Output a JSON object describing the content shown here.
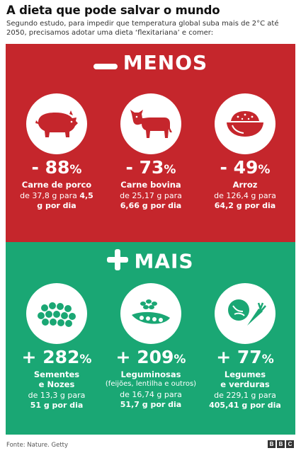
{
  "title": "A dieta que pode salvar o mundo",
  "subtitle": "Segundo estudo, para impedir que temperatura global suba mais de 2°C até 2050, precisamos adotar uma dieta ‘flexitariana’ e comer:",
  "menos": {
    "heading": "MENOS",
    "color": "#c5262c",
    "items": [
      {
        "icon": "pig-icon",
        "pct": "- 88",
        "name": "Carne de porco",
        "desc_pre": "de 37,8 g para ",
        "desc_bold": "4,5",
        "desc_line2": "g por dia"
      },
      {
        "icon": "cow-icon",
        "pct": "- 73",
        "name": "Carne bovina",
        "desc_pre": "de 25,17 g para",
        "desc_bold": "",
        "desc_line2": "6,66 g por dia"
      },
      {
        "icon": "rice-bowl-icon",
        "pct": "- 49",
        "name": "Arroz",
        "desc_pre": "de 126,4 g para",
        "desc_bold": "",
        "desc_line2": "64,2 g por dia"
      }
    ]
  },
  "mais": {
    "heading": "MAIS",
    "color": "#1aa774",
    "items": [
      {
        "icon": "seeds-icon",
        "pct": "+ 282",
        "name": "Sementes",
        "name2": "e Nozes",
        "sub": "",
        "desc_pre": "de 13,3 g para",
        "desc_line2": "51 g por dia"
      },
      {
        "icon": "legumes-icon",
        "pct": "+ 209",
        "name": "Leguminosas",
        "name2": "",
        "sub": "(feijões, lentilha e outros)",
        "desc_pre": "de 16,74 g para",
        "desc_line2": "51,7 g por dia"
      },
      {
        "icon": "vegetables-icon",
        "pct": "+ 77",
        "name": "Legumes",
        "name2": "e verduras",
        "sub": "",
        "desc_pre": "de 229,1 g para",
        "desc_line2": "405,41 g por dia"
      }
    ]
  },
  "pct_sign": "%",
  "footer": "Fonte: Nature. Getty",
  "logo": [
    "B",
    "B",
    "C"
  ]
}
